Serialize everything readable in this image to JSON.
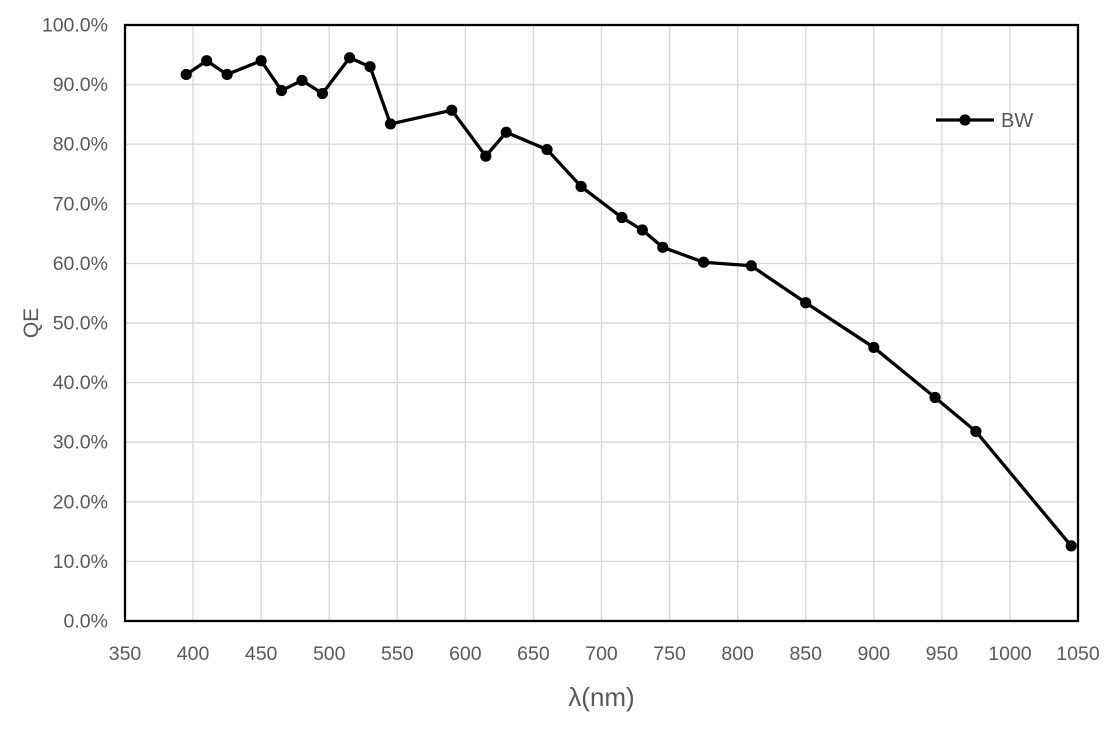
{
  "chart_data": {
    "type": "line",
    "xlabel": "λ(nm)",
    "ylabel": "QE",
    "xlim": [
      350,
      1050
    ],
    "ylim": [
      0,
      100
    ],
    "grid": true,
    "legend_position": "top-right-inside",
    "x_ticks": [
      350,
      400,
      450,
      500,
      550,
      600,
      650,
      700,
      750,
      800,
      850,
      900,
      950,
      1000,
      1050
    ],
    "x_tick_labels": [
      "350",
      "400",
      "450",
      "500",
      "550",
      "600",
      "650",
      "700",
      "750",
      "800",
      "850",
      "900",
      "950",
      "1000",
      "1050"
    ],
    "y_ticks": [
      0,
      10,
      20,
      30,
      40,
      50,
      60,
      70,
      80,
      90,
      100
    ],
    "y_tick_labels": [
      "0.0%",
      "10.0%",
      "20.0%",
      "30.0%",
      "40.0%",
      "50.0%",
      "60.0%",
      "70.0%",
      "80.0%",
      "90.0%",
      "100.0%"
    ],
    "series": [
      {
        "name": "BW",
        "marker": "circle",
        "x": [
          395,
          410,
          425,
          450,
          465,
          480,
          495,
          515,
          530,
          545,
          590,
          615,
          630,
          660,
          685,
          715,
          730,
          745,
          775,
          810,
          850,
          900,
          945,
          975,
          1045
        ],
        "values": [
          91.7,
          94.0,
          91.7,
          94.0,
          89.0,
          90.7,
          88.5,
          94.5,
          93.0,
          83.4,
          85.7,
          78.0,
          82.0,
          79.1,
          72.9,
          67.7,
          65.6,
          62.7,
          60.2,
          59.6,
          53.4,
          45.9,
          37.5,
          31.8,
          12.6
        ]
      }
    ]
  },
  "style": {
    "series_color": "#000000",
    "tick_label_color": "#595959",
    "axis_title_color": "#595959",
    "legend_label_color": "#595959",
    "gridline_color": "#d9d9d9",
    "plot_border_color": "#000000",
    "background": "#ffffff"
  }
}
